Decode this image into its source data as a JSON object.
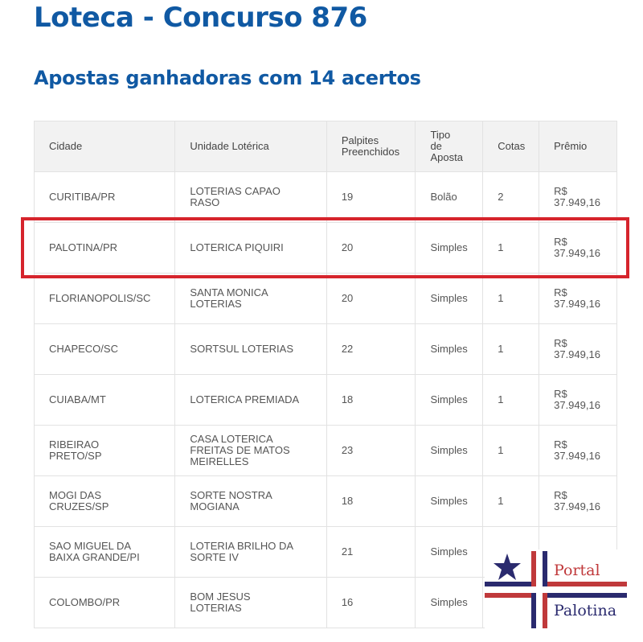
{
  "title": "Loteca - Concurso 876",
  "subtitle": "Apostas ganhadoras com 14 acertos",
  "table": {
    "headers": [
      "Cidade",
      "Unidade Lotérica",
      "Palpites Preenchidos",
      "Tipo de Aposta",
      "Cotas",
      "Prêmio"
    ],
    "rows": [
      [
        "CURITIBA/PR",
        "LOTERIAS CAPAO RASO",
        "19",
        "Bolão",
        "2",
        "R$ 37.949,16"
      ],
      [
        "PALOTINA/PR",
        "LOTERICA PIQUIRI",
        "20",
        "Simples",
        "1",
        "R$ 37.949,16"
      ],
      [
        "FLORIANOPOLIS/SC",
        "SANTA MONICA LOTERIAS",
        "20",
        "Simples",
        "1",
        "R$ 37.949,16"
      ],
      [
        "CHAPECO/SC",
        "SORTSUL LOTERIAS",
        "22",
        "Simples",
        "1",
        "R$ 37.949,16"
      ],
      [
        "CUIABA/MT",
        "LOTERICA PREMIADA",
        "18",
        "Simples",
        "1",
        "R$ 37.949,16"
      ],
      [
        "RIBEIRAO PRETO/SP",
        "CASA LOTERICA FREITAS DE MATOS MEIRELLES",
        "23",
        "Simples",
        "1",
        "R$ 37.949,16"
      ],
      [
        "MOGI DAS CRUZES/SP",
        "SORTE NOSTRA MOGIANA",
        "18",
        "Simples",
        "1",
        "R$ 37.949,16"
      ],
      [
        "SAO MIGUEL DA BAIXA GRANDE/PI",
        "LOTERIA BRILHO DA SORTE IV",
        "21",
        "Simples",
        "",
        ""
      ],
      [
        "COLOMBO/PR",
        "BOM JESUS LOTERIAS",
        "16",
        "Simples",
        "",
        ""
      ]
    ],
    "highlighted_row": 1,
    "highlight_color": "#d6242c"
  },
  "watermark": {
    "line1": "Portal",
    "line2": "Palotina",
    "colors": {
      "red": "#c0393b",
      "navy": "#2a2a6e"
    }
  }
}
